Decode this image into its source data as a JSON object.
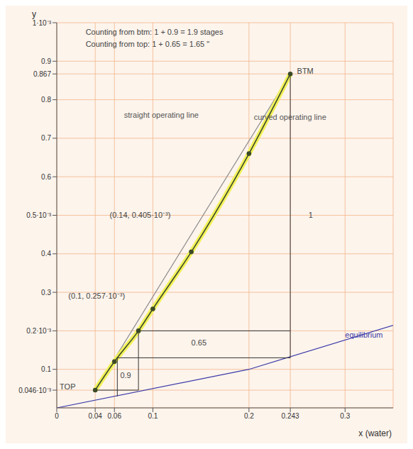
{
  "chart_data": {
    "type": "line",
    "x_label": "x (water)",
    "y_label": "y",
    "xlim": [
      0,
      0.35
    ],
    "ylim": [
      0,
      1
    ],
    "xticks": [
      0,
      0.04,
      0.06,
      0.1,
      0.2,
      0.243,
      0.3
    ],
    "yticks": [
      {
        "value": 0.046,
        "label": "0.046·10⁻³"
      },
      0.1,
      {
        "value": 0.2,
        "label": "0.2·10⁻³"
      },
      0.3,
      0.4,
      {
        "value": 0.5,
        "label": "0.5·10⁻³"
      },
      0.6,
      0.7,
      0.8,
      {
        "value": 0.867,
        "label": "0.867"
      },
      0.9,
      {
        "value": 1,
        "label": "1·10⁻³"
      }
    ],
    "grid": true,
    "series": [
      {
        "name": "equilibrium",
        "color": "#3b3ba8",
        "line_style": "solid",
        "marker": "none",
        "x": [
          0,
          0.2,
          0.36
        ],
        "values": [
          0,
          0.1,
          0.222
        ]
      },
      {
        "name": "straight operating line",
        "color": "#8a8a8a",
        "line_style": "solid",
        "marker": "none",
        "x": [
          0.04,
          0.243
        ],
        "values": [
          0.046,
          0.867
        ]
      },
      {
        "name": "curved operating line",
        "color": "#3d4a2a",
        "line_style": "solid",
        "marker": "dot",
        "x": [
          0.04,
          0.06,
          0.085,
          0.1,
          0.14,
          0.2,
          0.243
        ],
        "values": [
          0.046,
          0.12,
          0.2,
          0.257,
          0.405,
          0.66,
          0.867
        ]
      }
    ],
    "stage_lines": [
      {
        "color": "#333333",
        "x": [
          0.04,
          0.085,
          0.085,
          0.243
        ],
        "values": [
          0.046,
          0.046,
          0.2,
          0.2
        ]
      },
      {
        "color": "#333333",
        "x": [
          0.243,
          0.243,
          0.063,
          0.063
        ],
        "values": [
          0.867,
          0.13,
          0.13,
          0.03
        ]
      }
    ],
    "annotations": [
      "Counting from btm: 1 + 0.9 = 1.9 stages",
      "Counting from top: 1 + 0.65 = 1.65 \"",
      "straight operating line",
      "curved operating line",
      "(0.14, 0.405·10⁻³)",
      "(0.1, 0.257·10⁻³)",
      "TOP",
      "BTM",
      "equilibrium",
      "1",
      "0.65",
      "0.9"
    ]
  }
}
